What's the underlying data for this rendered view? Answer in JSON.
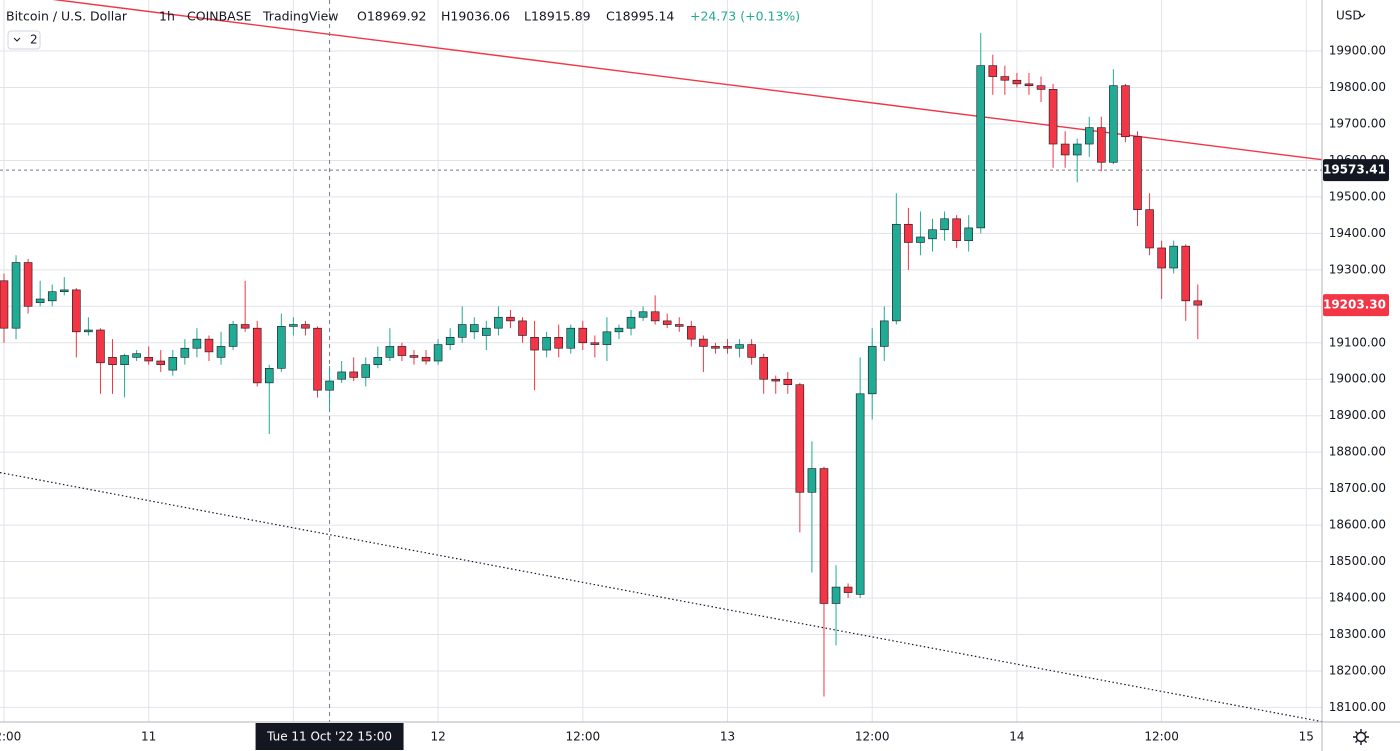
{
  "chart_data": {
    "type": "candlestick",
    "header": {
      "symbol": "Bitcoin / U.S. Dollar",
      "interval": "1h",
      "exchange": "COINBASE",
      "source": "TradingView",
      "open": "O18969.92",
      "high": "H19036.06",
      "low": "L18915.89",
      "close": "C18995.14",
      "change": "+24.73 (+0.13%)"
    },
    "indicator_badge": "2",
    "currency": "USD",
    "up_color": "#22ab94",
    "down_color": "#f23645",
    "grid": true,
    "ylim": [
      18060,
      20040
    ],
    "yticks": [
      {
        "value": 18100,
        "label": "18100.00"
      },
      {
        "value": 18200,
        "label": "18200.00"
      },
      {
        "value": 18300,
        "label": "18300.00"
      },
      {
        "value": 18400,
        "label": "18400.00"
      },
      {
        "value": 18500,
        "label": "18500.00"
      },
      {
        "value": 18600,
        "label": "18600.00"
      },
      {
        "value": 18700,
        "label": "18700.00"
      },
      {
        "value": 18800,
        "label": "18800.00"
      },
      {
        "value": 18900,
        "label": "18900.00"
      },
      {
        "value": 19000,
        "label": "19000.00"
      },
      {
        "value": 19100,
        "label": "19100.00"
      },
      {
        "value": 19200,
        "label": "19200.00"
      },
      {
        "value": 19300,
        "label": "19300.00"
      },
      {
        "value": 19400,
        "label": "19400.00"
      },
      {
        "value": 19500,
        "label": "19500.00"
      },
      {
        "value": 19600,
        "label": "19600.00"
      },
      {
        "value": 19700,
        "label": "19700.00"
      },
      {
        "value": 19800,
        "label": "19800.00"
      },
      {
        "value": 19900,
        "label": "19900.00"
      }
    ],
    "xlim": [
      -0.33,
      109.3
    ],
    "xticks": [
      {
        "value": 0,
        "label": "12:00"
      },
      {
        "value": 12,
        "label": "11"
      },
      {
        "value": 24,
        "label": "12:00"
      },
      {
        "value": 36,
        "label": "12"
      },
      {
        "value": 48,
        "label": "12:00"
      },
      {
        "value": 60,
        "label": "13"
      },
      {
        "value": 72,
        "label": "12:00"
      },
      {
        "value": 84,
        "label": "14"
      },
      {
        "value": 96,
        "label": "12:00"
      },
      {
        "value": 108,
        "label": "15"
      }
    ],
    "crosshair": {
      "index": 27,
      "label": "Tue 11 Oct '22 15:00"
    },
    "price_lines": [
      {
        "value": 19573.41,
        "label": "19573.41",
        "color": "#131722",
        "dashed": true
      },
      {
        "value": 19203.3,
        "label": "19203.30",
        "color": "#f23645",
        "dashed": false
      }
    ],
    "trend_lines": [
      {
        "x": [
          -0.33,
          109.3
        ],
        "y": [
          20060,
          19602
        ],
        "color": "#f23645",
        "style": "solid"
      },
      {
        "x": [
          -0.33,
          109.3
        ],
        "y": [
          18744,
          18061
        ],
        "color": "#131722",
        "style": "dotted"
      }
    ],
    "series": {
      "open": [
        19270,
        19140,
        19320,
        19210,
        19215,
        19240,
        19245,
        19130,
        19135,
        19060,
        19040,
        19060,
        19060,
        19050,
        19025,
        19060,
        19085,
        19110,
        19060,
        19090,
        19150,
        19140,
        18990,
        19030,
        19145,
        19150,
        19140,
        18969.92,
        19000,
        19020,
        19005,
        19040,
        19060,
        19090,
        19065,
        19060,
        19050,
        19095,
        19115,
        19130,
        19120,
        19140,
        19170,
        19160,
        19115,
        19080,
        19115,
        19085,
        19140,
        19100,
        19095,
        19130,
        19140,
        19170,
        19185,
        19160,
        19150,
        19145,
        19110,
        19090,
        19090,
        19085,
        19095,
        19060,
        19000,
        19000,
        18985,
        18690,
        18755,
        18385,
        18430,
        18410,
        18960,
        19090,
        19160,
        19425,
        19375,
        19385,
        19410,
        19440,
        19380,
        19415,
        19860,
        19830,
        19820,
        19810,
        19805,
        19795,
        19645,
        19615,
        19645,
        19690,
        19595,
        19805,
        19665,
        19465,
        19360,
        19305,
        19365,
        19215
      ],
      "high": [
        19290,
        19340,
        19330,
        19270,
        19260,
        19280,
        19250,
        19170,
        19140,
        19110,
        19070,
        19080,
        19090,
        19080,
        19080,
        19110,
        19140,
        19120,
        19130,
        19160,
        19270,
        19160,
        19040,
        19180,
        19170,
        19160,
        19145,
        19036.06,
        19050,
        19060,
        19060,
        19090,
        19140,
        19100,
        19080,
        19080,
        19110,
        19140,
        19200,
        19170,
        19160,
        19200,
        19190,
        19170,
        19160,
        19130,
        19150,
        19150,
        19160,
        19120,
        19170,
        19150,
        19190,
        19200,
        19230,
        19180,
        19170,
        19160,
        19120,
        19100,
        19110,
        19110,
        19110,
        19070,
        19010,
        19020,
        18990,
        18830,
        18760,
        18490,
        18440,
        19060,
        19140,
        19200,
        19510,
        19470,
        19460,
        19440,
        19460,
        19450,
        19450,
        19950,
        19890,
        19860,
        19840,
        19840,
        19830,
        19810,
        19680,
        19660,
        19720,
        19720,
        19850,
        19810,
        19680,
        19510,
        19380,
        19380,
        19370,
        19260
      ],
      "low": [
        19100,
        19110,
        19180,
        19200,
        19200,
        19230,
        19060,
        19120,
        18960,
        18960,
        18950,
        19050,
        19040,
        19020,
        19010,
        19040,
        19060,
        19050,
        19040,
        19080,
        19130,
        18980,
        18850,
        19020,
        19120,
        19120,
        18950,
        18915.89,
        18990,
        18995,
        18980,
        19030,
        19050,
        19050,
        19040,
        19040,
        19040,
        19080,
        19100,
        19110,
        19080,
        19120,
        19140,
        19100,
        18970,
        19060,
        19060,
        19070,
        19080,
        19060,
        19050,
        19110,
        19120,
        19160,
        19150,
        19140,
        19130,
        19090,
        19020,
        19070,
        19070,
        19060,
        19040,
        18960,
        18960,
        18960,
        18580,
        18470,
        18130,
        18270,
        18400,
        18400,
        18890,
        19050,
        19150,
        19300,
        19340,
        19350,
        19380,
        19360,
        19350,
        19400,
        19780,
        19780,
        19800,
        19780,
        19760,
        19580,
        19580,
        19540,
        19610,
        19570,
        19590,
        19650,
        19420,
        19340,
        19220,
        19290,
        19160,
        19110
      ],
      "close": [
        19140,
        19320,
        19200,
        19220,
        19240,
        19245,
        19130,
        19135,
        19045,
        19040,
        19065,
        19070,
        19050,
        19040,
        19060,
        19085,
        19110,
        19075,
        19090,
        19150,
        19140,
        18990,
        19030,
        19145,
        19150,
        19140,
        18970,
        18995.14,
        19020,
        19005,
        19040,
        19060,
        19090,
        19065,
        19060,
        19050,
        19095,
        19115,
        19150,
        19150,
        19140,
        19170,
        19160,
        19120,
        19080,
        19115,
        19085,
        19140,
        19100,
        19095,
        19130,
        19140,
        19170,
        19185,
        19160,
        19150,
        19145,
        19110,
        19090,
        19085,
        19085,
        19095,
        19060,
        19000,
        18995,
        18985,
        18690,
        18755,
        18385,
        18430,
        18415,
        18960,
        19090,
        19160,
        19425,
        19375,
        19390,
        19410,
        19440,
        19380,
        19415,
        19860,
        19830,
        19820,
        19810,
        19805,
        19795,
        19645,
        19615,
        19645,
        19690,
        19595,
        19805,
        19665,
        19465,
        19360,
        19305,
        19365,
        19215,
        19203.3
      ]
    }
  }
}
